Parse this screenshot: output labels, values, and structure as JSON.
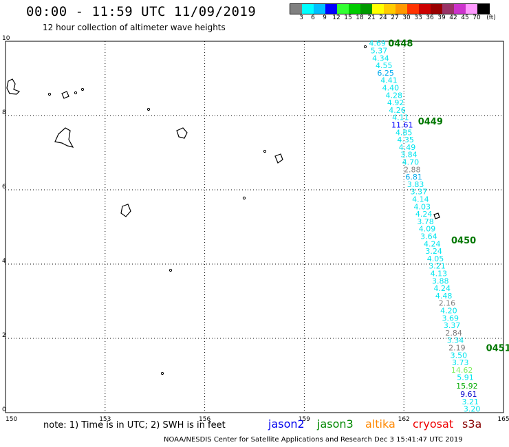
{
  "header": {
    "title": "00:00 - 11:59 UTC 11/09/2019",
    "subtitle": "12 hour collection of altimeter wave heights"
  },
  "legend": {
    "colors": [
      "#808080",
      "#00ffff",
      "#00bfff",
      "#0000ff",
      "#33ff33",
      "#00cc00",
      "#009900",
      "#ffff00",
      "#ffcc00",
      "#ff9900",
      "#ff3300",
      "#cc0000",
      "#990000",
      "#993366",
      "#cc33cc",
      "#ff99ff",
      "#000000"
    ],
    "labels": [
      "3",
      "6",
      "9",
      "12",
      "15",
      "18",
      "21",
      "24",
      "27",
      "30",
      "33",
      "36",
      "39",
      "42",
      "45",
      "70"
    ],
    "unit": "(ft)"
  },
  "map": {
    "x_ticks": [
      "150",
      "153",
      "156",
      "159",
      "162",
      "165"
    ],
    "y_ticks": [
      "0",
      "2",
      "4",
      "6",
      "8",
      "10"
    ],
    "lon_range": [
      150,
      165
    ],
    "lat_range": [
      0,
      10
    ]
  },
  "passes": [
    {
      "label": "0448",
      "lon": 161.9,
      "lat": 9.95
    },
    {
      "label": "0449",
      "lon": 162.8,
      "lat": 7.85
    },
    {
      "label": "0450",
      "lon": 163.8,
      "lat": 4.65
    },
    {
      "label": "0451",
      "lon": 164.85,
      "lat": 1.75
    }
  ],
  "observations": [
    {
      "v": "4.69",
      "lon": 161.2,
      "lat": 9.95,
      "c": "#00e5ee"
    },
    {
      "v": "5.37",
      "lon": 161.25,
      "lat": 9.75,
      "c": "#00e5ee"
    },
    {
      "v": "4.34",
      "lon": 161.3,
      "lat": 9.55,
      "c": "#00e5ee"
    },
    {
      "v": "4.55",
      "lon": 161.4,
      "lat": 9.35,
      "c": "#00e5ee"
    },
    {
      "v": "6.25",
      "lon": 161.45,
      "lat": 9.15,
      "c": "#00aaee"
    },
    {
      "v": "4.41",
      "lon": 161.55,
      "lat": 8.95,
      "c": "#00e5ee"
    },
    {
      "v": "4.40",
      "lon": 161.6,
      "lat": 8.75,
      "c": "#00e5ee"
    },
    {
      "v": "4.28",
      "lon": 161.7,
      "lat": 8.55,
      "c": "#00e5ee"
    },
    {
      "v": "4.92",
      "lon": 161.75,
      "lat": 8.35,
      "c": "#00e5ee"
    },
    {
      "v": "4.26",
      "lon": 161.8,
      "lat": 8.15,
      "c": "#00e5ee"
    },
    {
      "v": "4.11",
      "lon": 161.9,
      "lat": 7.95,
      "c": "#00e5ee"
    },
    {
      "v": "11.61",
      "lon": 161.95,
      "lat": 7.75,
      "c": "#0000ff"
    },
    {
      "v": "4.85",
      "lon": 162.0,
      "lat": 7.55,
      "c": "#00e5ee"
    },
    {
      "v": "4.35",
      "lon": 162.05,
      "lat": 7.35,
      "c": "#00e5ee"
    },
    {
      "v": "4.49",
      "lon": 162.1,
      "lat": 7.15,
      "c": "#00e5ee"
    },
    {
      "v": "3.84",
      "lon": 162.15,
      "lat": 6.95,
      "c": "#00e5ee"
    },
    {
      "v": "4.70",
      "lon": 162.2,
      "lat": 6.75,
      "c": "#00e5ee"
    },
    {
      "v": "2.88",
      "lon": 162.25,
      "lat": 6.55,
      "c": "#808080"
    },
    {
      "v": "6.81",
      "lon": 162.3,
      "lat": 6.35,
      "c": "#00aaee"
    },
    {
      "v": "3.83",
      "lon": 162.35,
      "lat": 6.15,
      "c": "#00e5ee"
    },
    {
      "v": "3.37",
      "lon": 162.45,
      "lat": 5.95,
      "c": "#00e5ee"
    },
    {
      "v": "4.14",
      "lon": 162.5,
      "lat": 5.75,
      "c": "#00e5ee"
    },
    {
      "v": "4.03",
      "lon": 162.55,
      "lat": 5.55,
      "c": "#00e5ee"
    },
    {
      "v": "4.24",
      "lon": 162.6,
      "lat": 5.35,
      "c": "#00e5ee"
    },
    {
      "v": "3.78",
      "lon": 162.65,
      "lat": 5.15,
      "c": "#00e5ee"
    },
    {
      "v": "4.09",
      "lon": 162.7,
      "lat": 4.95,
      "c": "#00e5ee"
    },
    {
      "v": "3.64",
      "lon": 162.75,
      "lat": 4.75,
      "c": "#00e5ee"
    },
    {
      "v": "4.24",
      "lon": 162.85,
      "lat": 4.55,
      "c": "#00e5ee"
    },
    {
      "v": "3.24",
      "lon": 162.9,
      "lat": 4.35,
      "c": "#00e5ee"
    },
    {
      "v": "4.05",
      "lon": 162.95,
      "lat": 4.15,
      "c": "#00e5ee"
    },
    {
      "v": "3.21",
      "lon": 163.0,
      "lat": 3.95,
      "c": "#00e5ee"
    },
    {
      "v": "4.13",
      "lon": 163.05,
      "lat": 3.75,
      "c": "#00e5ee"
    },
    {
      "v": "3.88",
      "lon": 163.1,
      "lat": 3.55,
      "c": "#00e5ee"
    },
    {
      "v": "4.24",
      "lon": 163.15,
      "lat": 3.35,
      "c": "#00e5ee"
    },
    {
      "v": "4.48",
      "lon": 163.2,
      "lat": 3.15,
      "c": "#00e5ee"
    },
    {
      "v": "2.16",
      "lon": 163.3,
      "lat": 2.95,
      "c": "#808080"
    },
    {
      "v": "4.20",
      "lon": 163.35,
      "lat": 2.75,
      "c": "#00e5ee"
    },
    {
      "v": "3.69",
      "lon": 163.4,
      "lat": 2.55,
      "c": "#00e5ee"
    },
    {
      "v": "3.37",
      "lon": 163.45,
      "lat": 2.35,
      "c": "#00e5ee"
    },
    {
      "v": "2.84",
      "lon": 163.5,
      "lat": 2.15,
      "c": "#808080"
    },
    {
      "v": "3.34",
      "lon": 163.55,
      "lat": 1.95,
      "c": "#00e5ee"
    },
    {
      "v": "2.19",
      "lon": 163.6,
      "lat": 1.75,
      "c": "#808080"
    },
    {
      "v": "3.50",
      "lon": 163.65,
      "lat": 1.55,
      "c": "#00e5ee"
    },
    {
      "v": "3.73",
      "lon": 163.7,
      "lat": 1.35,
      "c": "#00e5ee"
    },
    {
      "v": "14.62",
      "lon": 163.75,
      "lat": 1.15,
      "c": "#80ee60"
    },
    {
      "v": "5.91",
      "lon": 163.85,
      "lat": 0.95,
      "c": "#00e5ee"
    },
    {
      "v": "15.92",
      "lon": 163.9,
      "lat": 0.72,
      "c": "#00aa00"
    },
    {
      "v": "9.61",
      "lon": 163.95,
      "lat": 0.5,
      "c": "#0000cc"
    },
    {
      "v": "3.21",
      "lon": 164.0,
      "lat": 0.3,
      "c": "#00e5ee"
    },
    {
      "v": "3.20",
      "lon": 164.05,
      "lat": 0.1,
      "c": "#00e5ee"
    }
  ],
  "footer": {
    "note": "note: 1) Time is in UTC; 2) SWH is in feet",
    "credit": "NOAA/NESDIS Center for Satellite Applications and Research   Dec  3 15:41:47 UTC 2019",
    "satellites": [
      {
        "name": "jason2",
        "color": "#0000ee"
      },
      {
        "name": "jason3",
        "color": "#008800"
      },
      {
        "name": "altika",
        "color": "#ff8800"
      },
      {
        "name": "cryosat",
        "color": "#ee0000"
      },
      {
        "name": "s3a",
        "color": "#880000"
      }
    ]
  }
}
